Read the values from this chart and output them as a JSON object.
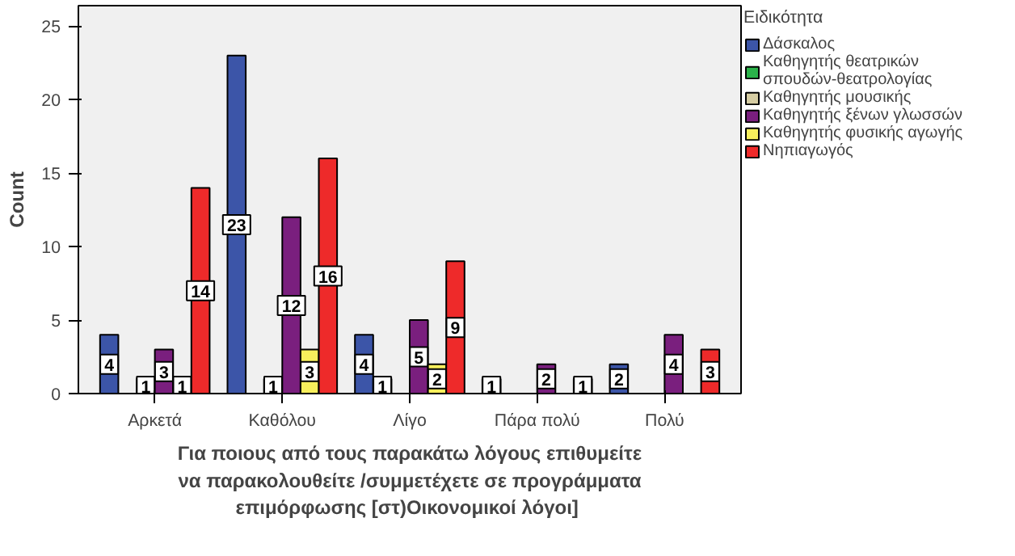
{
  "chart_data": {
    "type": "bar",
    "categories": [
      "Αρκετά",
      "Καθόλου",
      "Λίγο",
      "Πάρα πολύ",
      "Πολύ"
    ],
    "series": [
      {
        "name": "Δάσκαλος",
        "color": "#3c55a8",
        "values": [
          4,
          23,
          4,
          1,
          2
        ]
      },
      {
        "name": "Καθηγητής θεατρικών σπουδών-θεατρολογίας",
        "color": "#2bb34a",
        "values": [
          null,
          null,
          1,
          null,
          null
        ]
      },
      {
        "name": "Καθηγητής μουσικής",
        "color": "#d6cda3",
        "values": [
          1,
          1,
          null,
          null,
          null
        ]
      },
      {
        "name": "Καθηγητής ξένων γλωσσών",
        "color": "#7a1f7e",
        "values": [
          3,
          12,
          5,
          2,
          4
        ]
      },
      {
        "name": "Καθηγητής φυσικής αγωγής",
        "color": "#f7ef5c",
        "values": [
          1,
          3,
          2,
          null,
          null
        ]
      },
      {
        "name": "Νηπιαγωγός",
        "color": "#ee2a2a",
        "values": [
          14,
          16,
          9,
          1,
          3
        ]
      }
    ],
    "ylim": [
      0,
      26.4
    ],
    "yticks": [
      0,
      5,
      10,
      15,
      20,
      25
    ],
    "xlabel": "Για ποιους από τους παρακάτω λόγους επιθυμείτε\nνα παρακολουθείτε /συμμετέχετε σε προγράμματα\nεπιμόρφωσης  [στ)Οικονομικοί λόγοι]",
    "ylabel": "Count",
    "legend_title": "Ειδικότητα",
    "legend": "right",
    "data_labels": true,
    "grid": false
  }
}
